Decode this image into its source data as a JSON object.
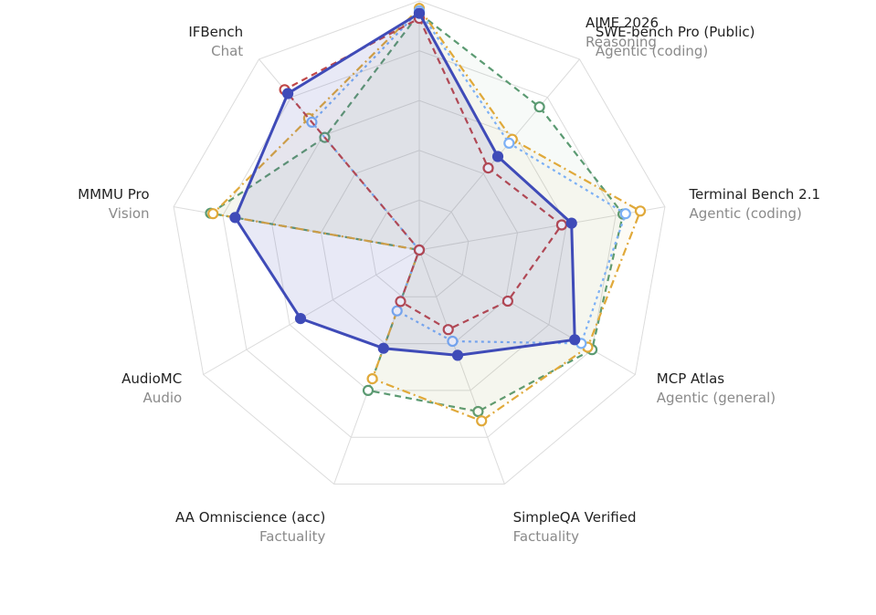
{
  "chart_data": {
    "type": "radar",
    "grid": true,
    "axes": [
      {
        "name": "AIME 2026",
        "category": "Reasoning"
      },
      {
        "name": "SWE-bench Pro (Public)",
        "category": "Agentic (coding)"
      },
      {
        "name": "Terminal Bench 2.1",
        "category": "Agentic (coding)"
      },
      {
        "name": "MCP Atlas",
        "category": "Agentic (general)"
      },
      {
        "name": "SimpleQA Verified",
        "category": "Factuality"
      },
      {
        "name": "AA Omniscience (acc)",
        "category": "Factuality"
      },
      {
        "name": "AudioMC",
        "category": "Audio"
      },
      {
        "name": "MMMU Pro",
        "category": "Vision"
      },
      {
        "name": "IFBench",
        "category": "Chat"
      }
    ],
    "range": [
      0,
      100
    ],
    "series": [
      {
        "color": "#5b9a72",
        "style": "dashed",
        "filled": true,
        "marker": "hollow",
        "values": [
          95,
          75,
          83,
          80,
          69,
          60,
          0,
          85,
          59
        ]
      },
      {
        "color": "#e0a93a",
        "style": "dashdot",
        "filled": true,
        "marker": "hollow",
        "values": [
          97,
          58,
          90,
          78,
          73,
          55,
          0,
          84,
          69
        ]
      },
      {
        "color": "#7cb0f5",
        "style": "dotted",
        "filled": false,
        "marker": "hollow",
        "values": [
          96,
          56,
          84,
          75,
          39,
          26,
          0,
          0,
          67
        ]
      },
      {
        "color": "#c04848",
        "style": "dashed",
        "filled": false,
        "marker": "hollow",
        "values": [
          93,
          43,
          58,
          41,
          34,
          22,
          0,
          0,
          84
        ]
      },
      {
        "color": "#3f4bb8",
        "style": "solid",
        "filled": true,
        "marker": "solid",
        "values": [
          95,
          49,
          62,
          72,
          45,
          42,
          55,
          75,
          82
        ]
      }
    ]
  }
}
